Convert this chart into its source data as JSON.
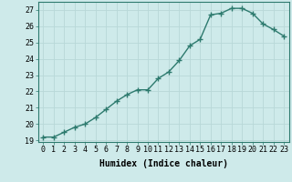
{
  "x": [
    0,
    1,
    2,
    3,
    4,
    5,
    6,
    7,
    8,
    9,
    10,
    11,
    12,
    13,
    14,
    15,
    16,
    17,
    18,
    19,
    20,
    21,
    22,
    23
  ],
  "y": [
    19.2,
    19.2,
    19.5,
    19.8,
    20.0,
    20.4,
    20.9,
    21.4,
    21.8,
    22.1,
    22.1,
    22.8,
    23.2,
    23.9,
    24.8,
    25.2,
    26.7,
    26.8,
    27.1,
    27.1,
    26.8,
    26.15,
    25.8,
    25.4
  ],
  "line_color": "#2d7a6e",
  "marker": "+",
  "marker_size": 4,
  "bg_color": "#ceeaea",
  "grid_color": "#b8d8d8",
  "xlabel": "Humidex (Indice chaleur)",
  "ylim": [
    18.9,
    27.5
  ],
  "xlim": [
    -0.5,
    23.5
  ],
  "yticks": [
    19,
    20,
    21,
    22,
    23,
    24,
    25,
    26,
    27
  ],
  "xticks": [
    0,
    1,
    2,
    3,
    4,
    5,
    6,
    7,
    8,
    9,
    10,
    11,
    12,
    13,
    14,
    15,
    16,
    17,
    18,
    19,
    20,
    21,
    22,
    23
  ],
  "tick_fontsize": 6,
  "xlabel_fontsize": 7,
  "line_width": 1.0,
  "marker_size_pts": 4,
  "markeredgewidth": 1.0
}
